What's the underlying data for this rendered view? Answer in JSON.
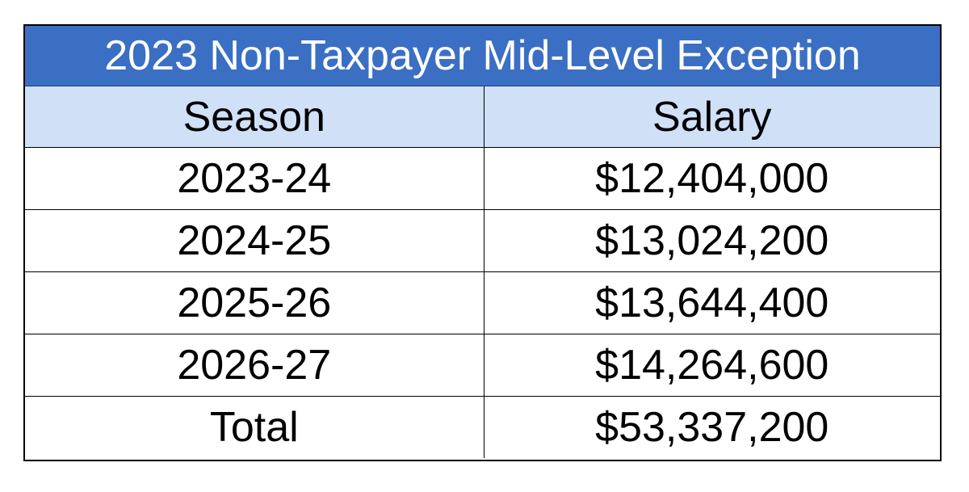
{
  "table": {
    "title": "2023 Non-Taxpayer Mid-Level Exception",
    "headers": [
      "Season",
      "Salary"
    ],
    "rows": [
      [
        "2023-24",
        "$12,404,000"
      ],
      [
        "2024-25",
        "$13,024,200"
      ],
      [
        "2025-26",
        "$13,644,400"
      ],
      [
        "2026-27",
        "$14,264,600"
      ]
    ],
    "total": [
      "Total",
      "$53,337,200"
    ]
  },
  "colors": {
    "title_background": "#3b6fc4",
    "title_text": "#ffffff",
    "header_background": "#cfe0f7",
    "border": "#000000"
  }
}
